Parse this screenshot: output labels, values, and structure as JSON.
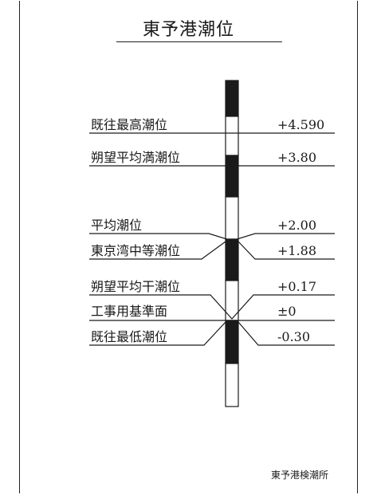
{
  "title": "東予港潮位",
  "levels": [
    {
      "label": "既往最高潮位",
      "value": "+4.590"
    },
    {
      "label": "朔望平均満潮位",
      "value": "+3.80"
    },
    {
      "label": "平均潮位",
      "value": "+2.00"
    },
    {
      "label": "東京湾中等潮位",
      "value": "+1.88"
    },
    {
      "label": "朔望平均干潮位",
      "value": "+0.17"
    },
    {
      "label": "工事用基準面",
      "value": "±0"
    },
    {
      "label": "既往最低潮位",
      "value": "-0.30"
    }
  ],
  "footer": "東予港検潮所",
  "colors": {
    "ink": "#1a1a1a",
    "staff_dark": "#1a1a1a",
    "staff_light": "#ffffff"
  }
}
